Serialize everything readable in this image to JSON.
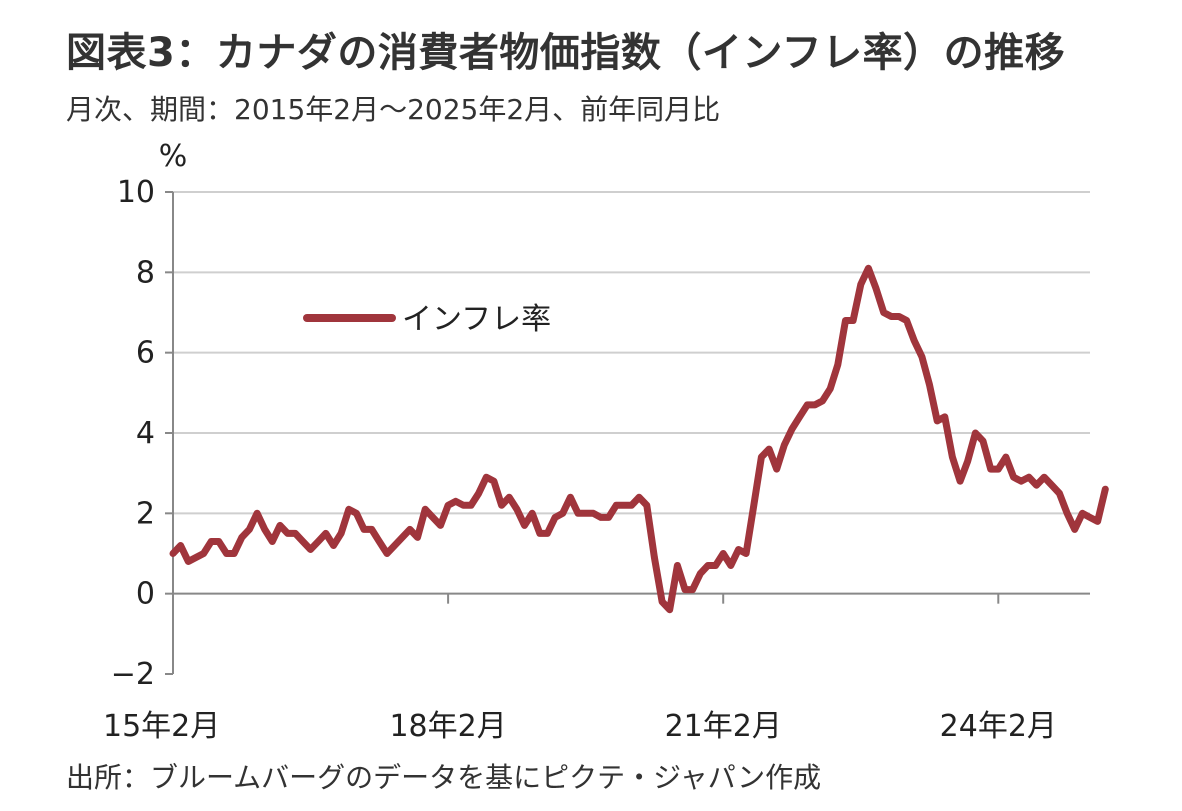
{
  "header": {
    "title": "図表3：カナダの消費者物価指数（インフレ率）の推移",
    "subtitle": "月次、期間：2015年2月～2025年2月、前年同月比"
  },
  "footer": {
    "source": "出所：ブルームバーグのデータを基にピクテ・ジャパン作成"
  },
  "chart_data": {
    "type": "line",
    "unit_label": "%",
    "ylim": [
      -2,
      10
    ],
    "y_ticks": [
      -2,
      0,
      2,
      4,
      6,
      8,
      10
    ],
    "x_tick_labels": [
      "15年2月",
      "18年2月",
      "21年2月",
      "24年2月"
    ],
    "x_range": [
      "2015-02",
      "2025-02"
    ],
    "grid": "horizontal",
    "legend_position": "upper-left",
    "colors": {
      "series": "#A0353C",
      "grid": "#cfcfcf",
      "axis": "#888888"
    },
    "series": [
      {
        "name": "インフレ率",
        "x_start": "2015-02",
        "frequency": "monthly",
        "values": [
          1.0,
          1.2,
          0.8,
          0.9,
          1.0,
          1.3,
          1.3,
          1.0,
          1.0,
          1.4,
          1.6,
          2.0,
          1.6,
          1.3,
          1.7,
          1.5,
          1.5,
          1.3,
          1.1,
          1.3,
          1.5,
          1.2,
          1.5,
          2.1,
          2.0,
          1.6,
          1.6,
          1.3,
          1.0,
          1.2,
          1.4,
          1.6,
          1.4,
          2.1,
          1.9,
          1.7,
          2.2,
          2.3,
          2.2,
          2.2,
          2.5,
          2.9,
          2.8,
          2.2,
          2.4,
          2.1,
          1.7,
          2.0,
          1.5,
          1.5,
          1.9,
          2.0,
          2.4,
          2.0,
          2.0,
          2.0,
          1.9,
          1.9,
          2.2,
          2.2,
          2.2,
          2.4,
          2.2,
          0.9,
          -0.2,
          -0.4,
          0.7,
          0.1,
          0.1,
          0.5,
          0.7,
          0.7,
          1.0,
          0.7,
          1.1,
          1.0,
          2.2,
          3.4,
          3.6,
          3.1,
          3.7,
          4.1,
          4.4,
          4.7,
          4.7,
          4.8,
          5.1,
          5.7,
          6.8,
          6.8,
          7.7,
          8.1,
          7.6,
          7.0,
          6.9,
          6.9,
          6.8,
          6.3,
          5.9,
          5.2,
          4.3,
          4.4,
          3.4,
          2.8,
          3.3,
          4.0,
          3.8,
          3.1,
          3.1,
          3.4,
          2.9,
          2.8,
          2.9,
          2.7,
          2.9,
          2.7,
          2.5,
          2.0,
          1.6,
          2.0,
          1.9,
          1.8,
          2.6
        ]
      }
    ]
  }
}
